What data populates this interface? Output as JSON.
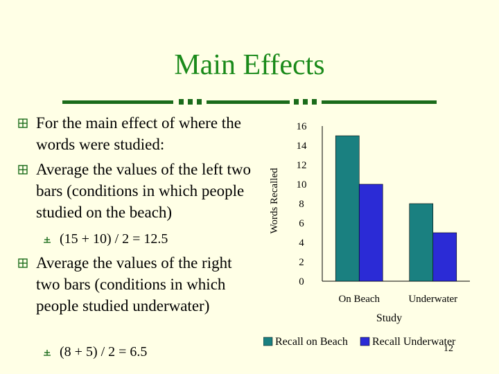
{
  "slide": {
    "title": "Main Effects",
    "page_number": "12",
    "bullets": [
      {
        "level": 1,
        "text": "For the main effect of where the words were studied:"
      },
      {
        "level": 1,
        "text": "Average the values of the left two bars (conditions in which people studied on the beach)"
      },
      {
        "level": 2,
        "text": "(15 + 10) / 2 = 12.5"
      },
      {
        "level": 1,
        "text": "Average the values of the right two bars (conditions in which people studied underwater)"
      },
      {
        "level": 2,
        "text": "(8 + 5) / 2 = 6.5"
      }
    ]
  },
  "chart_data": {
    "type": "bar",
    "categories": [
      "On Beach",
      "Underwater"
    ],
    "series": [
      {
        "name": "Recall on Beach",
        "values": [
          15,
          8
        ],
        "color": "#1a8080"
      },
      {
        "name": "Recall Underwater",
        "values": [
          10,
          5
        ],
        "color": "#2b2bd6"
      }
    ],
    "xlabel": "Study",
    "ylabel": "Words Recalled",
    "ylim": [
      0,
      16
    ],
    "yticks": [
      "0",
      "2",
      "4",
      "6",
      "8",
      "10",
      "12",
      "14",
      "16"
    ],
    "grid": false,
    "legend_position": "bottom"
  }
}
